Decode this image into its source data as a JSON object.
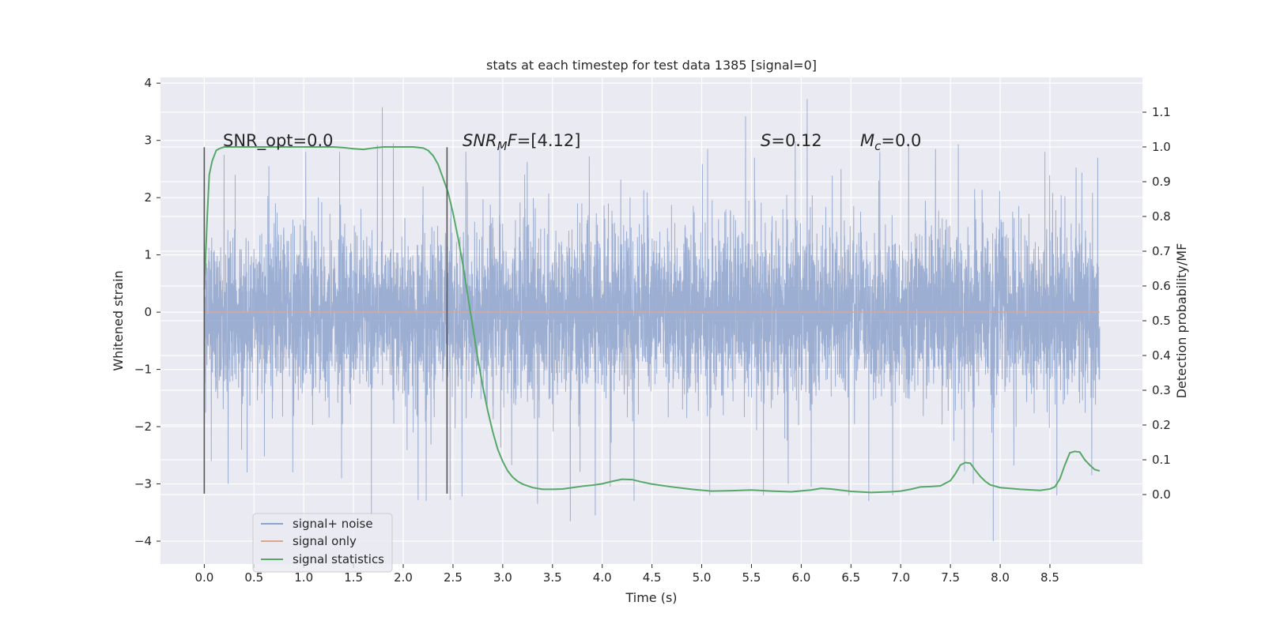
{
  "chart_data": {
    "type": "line",
    "title": "stats at each timestep for test data 1385 [signal=0]",
    "xlabel": "Time (s)",
    "ylabel": "Whitened strain",
    "y2label": "Detection probability/MF",
    "xlim": [
      -0.44,
      9.43
    ],
    "ylim": [
      -4.4,
      4.1
    ],
    "y2lim": [
      -0.2,
      1.2
    ],
    "xticks": [
      "0.0",
      "0.5",
      "1.0",
      "1.5",
      "2.0",
      "2.5",
      "3.0",
      "3.5",
      "4.0",
      "4.5",
      "5.0",
      "5.5",
      "6.0",
      "6.5",
      "7.0",
      "7.5",
      "8.0",
      "8.5"
    ],
    "yticks": [
      "4",
      "3",
      "2",
      "1",
      "0",
      "−1",
      "−2",
      "−3",
      "−4"
    ],
    "y2ticks": [
      "1.1",
      "1.0",
      "0.9",
      "0.8",
      "0.7",
      "0.6",
      "0.5",
      "0.4",
      "0.3",
      "0.2",
      "0.1",
      "0.0"
    ],
    "grid": true,
    "legend_position": "lower-left",
    "annotations": {
      "snr_opt": "SNR_opt=0.0",
      "snr_mf_sym": "SNR",
      "snr_mf_sub": "M",
      "snr_mf_sym2": "F",
      "snr_mf_val": "=[4.12]",
      "s_sym": "S",
      "s_val": "=0.12",
      "mc_sym": "M",
      "mc_sub": "c",
      "mc_val": "=0.0"
    },
    "vlines": [
      {
        "x": 0.0,
        "y_from": -3.17,
        "y_to": 2.88
      },
      {
        "x": 2.44,
        "y_from": -3.17,
        "y_to": 2.88
      }
    ],
    "series": [
      {
        "name": "signal+ noise",
        "color": "#8ea3cc",
        "t_start": 0.0,
        "t_end": 9.0,
        "amplitude_std": 0.75,
        "peaks": [
          [
            0.07,
            -2.6
          ],
          [
            0.2,
            2.75
          ],
          [
            0.24,
            -3.0
          ],
          [
            0.31,
            2.4
          ],
          [
            0.43,
            -2.8
          ],
          [
            0.65,
            2.55
          ],
          [
            0.89,
            -2.8
          ],
          [
            1.02,
            2.8
          ],
          [
            1.36,
            2.8
          ],
          [
            1.38,
            -2.9
          ],
          [
            1.68,
            -3.55
          ],
          [
            1.74,
            2.92
          ],
          [
            1.79,
            3.58
          ],
          [
            1.9,
            2.95
          ],
          [
            2.15,
            -3.28
          ],
          [
            2.23,
            -3.3
          ],
          [
            2.47,
            -3.28
          ],
          [
            2.59,
            -3.22
          ],
          [
            2.63,
            2.8
          ],
          [
            2.97,
            2.9
          ],
          [
            3.35,
            -3.35
          ],
          [
            3.68,
            -3.65
          ],
          [
            3.87,
            2.72
          ],
          [
            3.93,
            -3.55
          ],
          [
            4.08,
            -3.05
          ],
          [
            4.32,
            -3.3
          ],
          [
            5.06,
            2.85
          ],
          [
            5.08,
            -3.2
          ],
          [
            5.44,
            3.42
          ],
          [
            5.53,
            2.7
          ],
          [
            5.62,
            -3.2
          ],
          [
            5.87,
            -3.0
          ],
          [
            5.94,
            2.98
          ],
          [
            6.06,
            3.72
          ],
          [
            6.1,
            -3.05
          ],
          [
            6.4,
            2.5
          ],
          [
            6.48,
            -3.2
          ],
          [
            6.68,
            -3.3
          ],
          [
            6.79,
            2.8
          ],
          [
            6.92,
            -3.2
          ],
          [
            7.08,
            2.9
          ],
          [
            7.35,
            2.85
          ],
          [
            7.58,
            2.93
          ],
          [
            7.73,
            -3.0
          ],
          [
            7.93,
            -4.0
          ],
          [
            8.45,
            2.8
          ],
          [
            8.57,
            -3.2
          ],
          [
            8.92,
            -2.85
          ],
          [
            8.98,
            2.7
          ]
        ]
      },
      {
        "name": "signal only",
        "color": "#e0a58e",
        "x": [
          0.0,
          9.0
        ],
        "y": [
          0.0,
          0.0
        ]
      },
      {
        "name": "signal statistics",
        "color": "#55a868",
        "axis": "right",
        "x": [
          0.0,
          0.03,
          0.05,
          0.08,
          0.12,
          0.15,
          0.2,
          0.3,
          0.5,
          0.8,
          1.0,
          1.2,
          1.3,
          1.4,
          1.5,
          1.6,
          1.7,
          1.8,
          1.9,
          2.0,
          2.1,
          2.2,
          2.25,
          2.3,
          2.35,
          2.4,
          2.45,
          2.5,
          2.55,
          2.6,
          2.65,
          2.7,
          2.75,
          2.8,
          2.85,
          2.9,
          2.95,
          3.0,
          3.05,
          3.1,
          3.15,
          3.2,
          3.3,
          3.4,
          3.5,
          3.6,
          3.7,
          3.8,
          3.9,
          4.0,
          4.1,
          4.2,
          4.3,
          4.4,
          4.5,
          4.7,
          4.9,
          5.1,
          5.3,
          5.5,
          5.7,
          5.9,
          6.1,
          6.2,
          6.3,
          6.5,
          6.7,
          6.9,
          7.0,
          7.1,
          7.2,
          7.3,
          7.4,
          7.5,
          7.55,
          7.6,
          7.65,
          7.7,
          7.75,
          7.8,
          7.85,
          7.9,
          8.0,
          8.2,
          8.4,
          8.5,
          8.55,
          8.6,
          8.65,
          8.7,
          8.75,
          8.8,
          8.85,
          8.9,
          8.95,
          9.0
        ],
        "y": [
          0.59,
          0.8,
          0.92,
          0.96,
          0.99,
          0.995,
          1.0,
          1.0,
          1.0,
          1.0,
          1.0,
          1.0,
          1.0,
          0.998,
          0.995,
          0.993,
          0.997,
          1.0,
          1.0,
          1.0,
          1.0,
          0.997,
          0.99,
          0.975,
          0.95,
          0.91,
          0.87,
          0.81,
          0.74,
          0.66,
          0.57,
          0.48,
          0.39,
          0.31,
          0.24,
          0.18,
          0.13,
          0.095,
          0.068,
          0.05,
          0.038,
          0.03,
          0.02,
          0.015,
          0.015,
          0.016,
          0.02,
          0.024,
          0.027,
          0.031,
          0.038,
          0.044,
          0.043,
          0.036,
          0.03,
          0.022,
          0.015,
          0.01,
          0.011,
          0.013,
          0.01,
          0.008,
          0.013,
          0.018,
          0.016,
          0.009,
          0.006,
          0.008,
          0.01,
          0.015,
          0.022,
          0.023,
          0.025,
          0.04,
          0.06,
          0.085,
          0.092,
          0.09,
          0.07,
          0.052,
          0.038,
          0.028,
          0.02,
          0.015,
          0.012,
          0.016,
          0.022,
          0.045,
          0.085,
          0.12,
          0.124,
          0.122,
          0.1,
          0.085,
          0.072,
          0.068
        ]
      }
    ]
  }
}
